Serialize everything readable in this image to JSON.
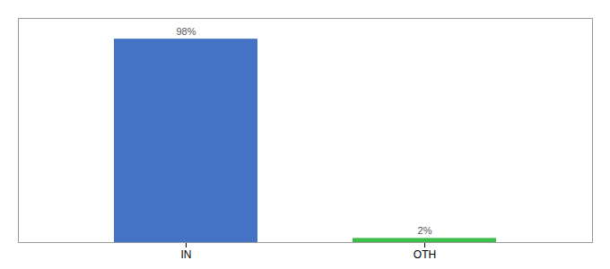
{
  "chart_data": {
    "type": "bar",
    "categories": [
      "IN",
      "OTH"
    ],
    "values": [
      98,
      2
    ],
    "value_labels": [
      "98%",
      "2%"
    ],
    "colors": [
      "#4472C4",
      "#3DBD4A"
    ],
    "ylim": [
      0,
      108
    ],
    "data_labels": true,
    "tick_labels": "x"
  }
}
